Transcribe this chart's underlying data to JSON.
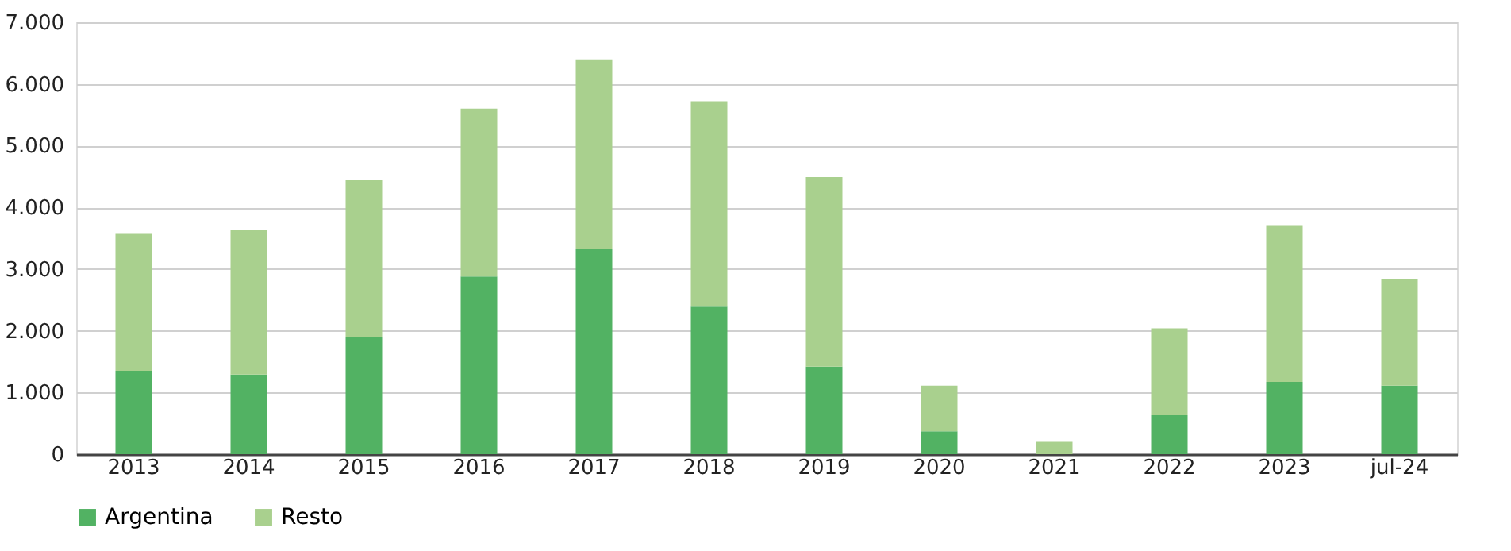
{
  "chart_data": {
    "type": "bar",
    "stacked": true,
    "categories": [
      "2013",
      "2014",
      "2015",
      "2016",
      "2017",
      "2018",
      "2019",
      "2020",
      "2021",
      "2022",
      "2023",
      "jul-24"
    ],
    "series": [
      {
        "name": "Argentina",
        "color": "#52b263",
        "values": [
          1350,
          1290,
          1900,
          2880,
          3320,
          2390,
          1420,
          370,
          0,
          630,
          1170,
          1110
        ]
      },
      {
        "name": "Resto",
        "color": "#a9d08e",
        "values": [
          2220,
          2340,
          2540,
          2720,
          3080,
          3330,
          3070,
          740,
          200,
          1410,
          2530,
          1720
        ]
      }
    ],
    "ylim": [
      0,
      7000
    ],
    "yticks": [
      0,
      {
        "value": 1000,
        "label": "1.000"
      },
      {
        "value": 2000,
        "label": "2.000"
      },
      {
        "value": 3000,
        "label": "3.000"
      },
      {
        "value": 4000,
        "label": "4.000"
      },
      {
        "value": 5000,
        "label": "5.000"
      },
      {
        "value": 6000,
        "label": "6.000"
      },
      {
        "value": 7000,
        "label": "7.000"
      }
    ],
    "grid": "y",
    "legend": "bottom"
  }
}
